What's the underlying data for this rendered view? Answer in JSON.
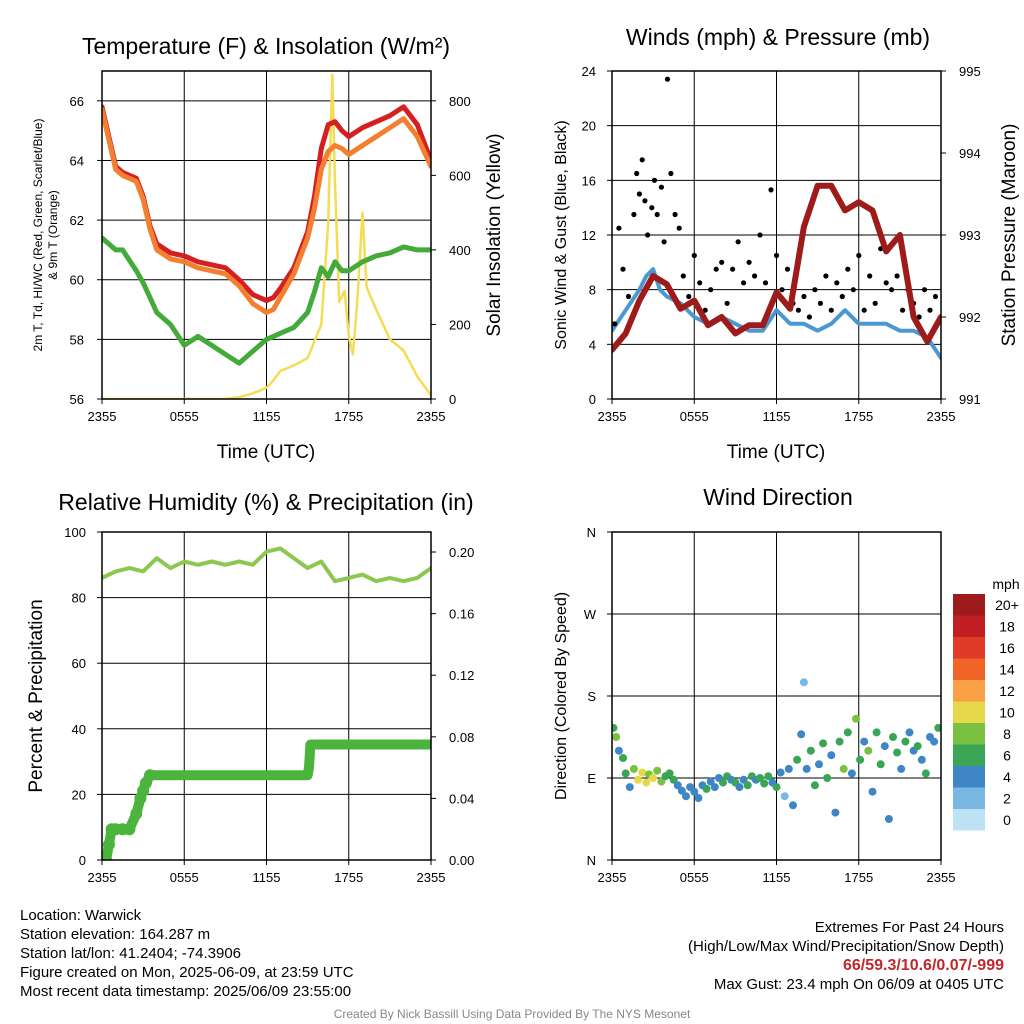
{
  "colors": {
    "temp": "#d42020",
    "hiwc": "#f28030",
    "dewpoint": "#44aa3a",
    "insolation": "#f5dc55",
    "wind": "#4a98d2",
    "gust": "#000000",
    "pressure": "#9e1b1b",
    "rh": "#8cc850",
    "precip": "#4ab43c"
  },
  "time_ticks": [
    "2355",
    "0555",
    "1155",
    "1755",
    "2355"
  ],
  "chart_data": [
    {
      "id": "temp",
      "type": "line",
      "title": "Temperature (F) & Insolation (W/m²)",
      "xlabel": "Time (UTC)",
      "ylabel": "2m T, Td, HI/WC (Red, Green, Scarlet/Blue) & 9m T (Orange)",
      "ylabel_lines": [
        "2m T, Td, HI/WC (Red, Green, Scarlet/Blue)",
        "& 9m T (Orange)"
      ],
      "ylabel2": "Solar Insolation (Yellow)",
      "x_hours": [
        0,
        1,
        1.5,
        2.5,
        3,
        3.5,
        4,
        5,
        6,
        7,
        8,
        9,
        10,
        11,
        12,
        12.5,
        13,
        14,
        15,
        15.5,
        16,
        16.5,
        17,
        17.5,
        18,
        19,
        20,
        21,
        22,
        23,
        24
      ],
      "series": [
        {
          "name": "2m T",
          "color": "#d42020",
          "values": [
            65.8,
            63.8,
            63.6,
            63.4,
            62.8,
            61.8,
            61.2,
            60.9,
            60.8,
            60.6,
            60.5,
            60.4,
            60.0,
            59.5,
            59.3,
            59.4,
            59.7,
            60.4,
            61.6,
            62.8,
            64.4,
            65.2,
            65.3,
            65.0,
            64.8,
            65.1,
            65.3,
            65.5,
            65.8,
            65.2,
            64.0
          ]
        },
        {
          "name": "9m T",
          "color": "#f28030",
          "values": [
            65.7,
            63.7,
            63.5,
            63.3,
            62.7,
            61.7,
            61.0,
            60.7,
            60.6,
            60.4,
            60.3,
            60.2,
            59.8,
            59.2,
            58.9,
            59.0,
            59.4,
            60.2,
            61.4,
            62.4,
            63.7,
            64.3,
            64.5,
            64.4,
            64.2,
            64.5,
            64.8,
            65.1,
            65.4,
            64.8,
            63.8
          ]
        },
        {
          "name": "Td",
          "color": "#44aa3a",
          "values": [
            61.4,
            61.0,
            61.0,
            60.3,
            59.9,
            59.4,
            58.9,
            58.5,
            57.8,
            58.1,
            57.8,
            57.5,
            57.2,
            57.6,
            58.0,
            58.1,
            58.2,
            58.4,
            58.9,
            59.6,
            60.4,
            60.1,
            60.6,
            60.3,
            60.3,
            60.6,
            60.8,
            60.9,
            61.1,
            61.0,
            61.0
          ]
        }
      ],
      "insolation": {
        "name": "Solar Insolation",
        "color": "#f5dc55",
        "x_hours": [
          0,
          9,
          10,
          11,
          12,
          12.5,
          13,
          14,
          15,
          16,
          16.5,
          16.8,
          17,
          17.3,
          17.7,
          18,
          18.3,
          18.6,
          19,
          19.3,
          20,
          21,
          22,
          23,
          24
        ],
        "values": [
          0,
          0,
          5,
          15,
          30,
          50,
          75,
          90,
          110,
          200,
          470,
          870,
          580,
          260,
          290,
          170,
          120,
          250,
          500,
          300,
          240,
          160,
          130,
          60,
          10
        ]
      },
      "ylim": [
        56,
        67
      ],
      "y_ticks": [
        56,
        58,
        60,
        62,
        64,
        66
      ],
      "y2lim": [
        0,
        880
      ],
      "y2_ticks": [
        0,
        200,
        400,
        600,
        800
      ],
      "xlim": [
        0,
        24
      ]
    },
    {
      "id": "wind",
      "type": "line+scatter",
      "title": "Winds (mph) & Pressure (mb)",
      "xlabel": "Time (UTC)",
      "ylabel": "Sonic Wind & Gust (Blue, Black)",
      "ylabel2": "Station Pressure (Maroon)",
      "wind_x_hours": [
        0,
        1,
        2,
        2.5,
        3,
        3.5,
        4,
        5,
        6,
        7,
        8,
        9,
        10,
        11,
        12,
        13,
        14,
        15,
        16,
        17,
        18,
        19,
        20,
        21,
        22,
        23,
        24
      ],
      "wind_values": [
        5.0,
        6.5,
        8.0,
        9.0,
        9.5,
        8.0,
        7.5,
        7.0,
        6.0,
        5.5,
        6.0,
        5.5,
        5.0,
        5.0,
        6.5,
        5.5,
        5.5,
        5.0,
        5.5,
        6.5,
        5.5,
        5.5,
        5.5,
        5.0,
        5.0,
        4.5,
        3.0
      ],
      "gust_points": [
        [
          0.2,
          5.5
        ],
        [
          0.5,
          12.5
        ],
        [
          0.8,
          9.5
        ],
        [
          1.2,
          7.5
        ],
        [
          1.6,
          13.5
        ],
        [
          1.8,
          16.5
        ],
        [
          2.0,
          15.0
        ],
        [
          2.2,
          17.5
        ],
        [
          2.4,
          14.5
        ],
        [
          2.6,
          12.0
        ],
        [
          2.9,
          14.0
        ],
        [
          3.1,
          16.0
        ],
        [
          3.3,
          13.5
        ],
        [
          3.6,
          15.5
        ],
        [
          3.8,
          11.5
        ],
        [
          4.05,
          23.4
        ],
        [
          4.3,
          16.5
        ],
        [
          4.6,
          13.5
        ],
        [
          4.9,
          12.5
        ],
        [
          5.2,
          9.0
        ],
        [
          5.6,
          7.5
        ],
        [
          6.0,
          10.5
        ],
        [
          6.4,
          8.5
        ],
        [
          6.8,
          6.5
        ],
        [
          7.2,
          8.0
        ],
        [
          7.6,
          9.5
        ],
        [
          8.0,
          10.0
        ],
        [
          8.4,
          7.0
        ],
        [
          8.8,
          9.5
        ],
        [
          9.2,
          11.5
        ],
        [
          9.6,
          8.5
        ],
        [
          10.0,
          10.0
        ],
        [
          10.4,
          9.0
        ],
        [
          10.8,
          12.0
        ],
        [
          11.2,
          8.5
        ],
        [
          11.6,
          15.3
        ],
        [
          12.0,
          10.5
        ],
        [
          12.4,
          8.0
        ],
        [
          12.8,
          9.5
        ],
        [
          13.2,
          7.0
        ],
        [
          13.6,
          6.5
        ],
        [
          14.0,
          7.5
        ],
        [
          14.4,
          6.0
        ],
        [
          14.8,
          8.0
        ],
        [
          15.2,
          7.0
        ],
        [
          15.6,
          9.0
        ],
        [
          16.0,
          6.5
        ],
        [
          16.4,
          8.5
        ],
        [
          16.8,
          7.5
        ],
        [
          17.2,
          9.5
        ],
        [
          17.6,
          8.0
        ],
        [
          18.0,
          10.5
        ],
        [
          18.4,
          6.5
        ],
        [
          18.8,
          9.0
        ],
        [
          19.2,
          7.0
        ],
        [
          19.6,
          11.0
        ],
        [
          20.0,
          8.5
        ],
        [
          20.4,
          8.0
        ],
        [
          20.8,
          9.0
        ],
        [
          21.2,
          6.5
        ],
        [
          21.6,
          8.0
        ],
        [
          22.0,
          7.0
        ],
        [
          22.4,
          6.0
        ],
        [
          22.8,
          8.0
        ],
        [
          23.2,
          6.5
        ],
        [
          23.6,
          7.5
        ],
        [
          24.0,
          6.0
        ]
      ],
      "pressure_x_hours": [
        0,
        1,
        2,
        3,
        4,
        5,
        6,
        7,
        8,
        9,
        10,
        11,
        12,
        13,
        14,
        15,
        16,
        17,
        18,
        19,
        20,
        21,
        22,
        23,
        24
      ],
      "pressure_values": [
        991.6,
        991.8,
        992.2,
        992.5,
        992.4,
        992.1,
        992.2,
        991.9,
        992.0,
        991.8,
        991.9,
        991.9,
        992.3,
        992.1,
        993.1,
        993.6,
        993.6,
        993.3,
        993.4,
        993.3,
        992.8,
        993.0,
        992.0,
        991.7,
        992.0
      ],
      "ylim": [
        0,
        24
      ],
      "y_ticks": [
        0,
        4,
        8,
        12,
        16,
        20,
        24
      ],
      "y2lim": [
        991,
        995
      ],
      "y2_ticks": [
        991,
        992,
        993,
        994,
        995
      ],
      "xlim": [
        0,
        24
      ]
    },
    {
      "id": "rh",
      "type": "line",
      "title": "Relative Humidity (%) & Precipitation (in)",
      "ylabel": "Percent & Precipitation",
      "rh_x_hours": [
        0,
        1,
        2,
        3,
        4,
        5,
        6,
        7,
        8,
        9,
        10,
        11,
        12,
        13,
        14,
        15,
        16,
        17,
        18,
        19,
        20,
        21,
        22,
        23,
        24
      ],
      "rh_values": [
        86,
        88,
        89,
        88,
        92,
        89,
        91,
        90,
        91,
        90,
        91,
        90,
        94,
        95,
        92,
        89,
        91,
        85,
        86,
        87,
        85,
        86,
        85,
        86,
        89
      ],
      "precip_x_hours": [
        0,
        0.3,
        0.5,
        0.7,
        1.0,
        1.5,
        2.0,
        2.5,
        2.8,
        3.0,
        3.2,
        3.5,
        15.0,
        15.1,
        15.2,
        24
      ],
      "precip_values": [
        0.0,
        0.0,
        0.01,
        0.02,
        0.02,
        0.02,
        0.02,
        0.03,
        0.04,
        0.045,
        0.05,
        0.055,
        0.055,
        0.06,
        0.075,
        0.075
      ],
      "ylim": [
        0,
        100
      ],
      "y_ticks": [
        0,
        20,
        40,
        60,
        80,
        100
      ],
      "y2lim": [
        0,
        0.213
      ],
      "y2_ticks": [
        "0.00",
        "0.04",
        "0.08",
        "0.12",
        "0.16",
        "0.20"
      ],
      "xlim": [
        0,
        24
      ]
    },
    {
      "id": "dir",
      "type": "scatter",
      "title": "Wind Direction",
      "ylabel": "Direction (Colored By Speed)",
      "y_ticks": [
        "N",
        "E",
        "S",
        "W",
        "N"
      ],
      "ylim": [
        0,
        360
      ],
      "xlim": [
        0,
        24
      ],
      "points": [
        [
          0.1,
          145,
          6
        ],
        [
          0.3,
          135,
          7
        ],
        [
          0.5,
          120,
          4
        ],
        [
          0.8,
          112,
          5
        ],
        [
          1.0,
          95,
          6
        ],
        [
          1.3,
          80,
          4
        ],
        [
          1.6,
          100,
          8
        ],
        [
          1.9,
          88,
          9
        ],
        [
          2.2,
          96,
          9
        ],
        [
          2.5,
          85,
          10
        ],
        [
          2.7,
          94,
          8
        ],
        [
          3.0,
          90,
          9
        ],
        [
          3.3,
          98,
          7
        ],
        [
          3.6,
          86,
          8
        ],
        [
          3.9,
          92,
          6
        ],
        [
          4.2,
          95,
          5
        ],
        [
          4.5,
          88,
          6
        ],
        [
          4.8,
          82,
          4
        ],
        [
          5.1,
          76,
          3
        ],
        [
          5.4,
          70,
          4
        ],
        [
          5.7,
          80,
          3
        ],
        [
          6.0,
          75,
          4
        ],
        [
          6.3,
          68,
          3
        ],
        [
          6.6,
          82,
          4
        ],
        [
          6.9,
          78,
          5
        ],
        [
          7.2,
          86,
          4
        ],
        [
          7.5,
          80,
          3
        ],
        [
          7.8,
          90,
          4
        ],
        [
          8.1,
          85,
          5
        ],
        [
          8.4,
          92,
          6
        ],
        [
          8.7,
          88,
          4
        ],
        [
          9.0,
          85,
          5
        ],
        [
          9.3,
          80,
          3
        ],
        [
          9.6,
          88,
          4
        ],
        [
          9.9,
          82,
          5
        ],
        [
          10.2,
          92,
          6
        ],
        [
          10.5,
          88,
          4
        ],
        [
          10.8,
          90,
          5
        ],
        [
          11.1,
          84,
          6
        ],
        [
          11.4,
          92,
          5
        ],
        [
          11.7,
          85,
          4
        ],
        [
          12.0,
          80,
          5
        ],
        [
          12.3,
          96,
          3
        ],
        [
          12.6,
          70,
          2
        ],
        [
          12.9,
          100,
          4
        ],
        [
          13.2,
          60,
          3
        ],
        [
          13.5,
          110,
          5
        ],
        [
          13.8,
          138,
          3
        ],
        [
          14.0,
          195,
          2
        ],
        [
          14.2,
          100,
          4
        ],
        [
          14.5,
          120,
          5
        ],
        [
          14.8,
          82,
          6
        ],
        [
          15.1,
          105,
          4
        ],
        [
          15.4,
          128,
          5
        ],
        [
          15.7,
          90,
          6
        ],
        [
          16.0,
          115,
          3
        ],
        [
          16.3,
          52,
          4
        ],
        [
          16.6,
          130,
          5
        ],
        [
          16.9,
          100,
          7
        ],
        [
          17.2,
          140,
          6
        ],
        [
          17.5,
          95,
          4
        ],
        [
          17.8,
          155,
          8
        ],
        [
          18.1,
          110,
          5
        ],
        [
          18.4,
          130,
          3
        ],
        [
          18.7,
          120,
          7
        ],
        [
          19.0,
          75,
          4
        ],
        [
          19.3,
          140,
          5
        ],
        [
          19.6,
          105,
          6
        ],
        [
          19.9,
          125,
          4
        ],
        [
          20.2,
          45,
          4
        ],
        [
          20.5,
          135,
          5
        ],
        [
          20.8,
          118,
          6
        ],
        [
          21.1,
          100,
          4
        ],
        [
          21.4,
          130,
          5
        ],
        [
          21.7,
          140,
          4
        ],
        [
          22.0,
          120,
          3
        ],
        [
          22.3,
          125,
          5
        ],
        [
          22.6,
          110,
          4
        ],
        [
          22.9,
          95,
          5
        ],
        [
          23.2,
          135,
          4
        ],
        [
          23.5,
          130,
          3
        ],
        [
          23.8,
          145,
          5
        ]
      ],
      "legend": {
        "unit": "mph",
        "labels": [
          "20+",
          "18",
          "16",
          "14",
          "12",
          "10",
          "8",
          "6",
          "4",
          "2",
          "0"
        ],
        "colors": [
          "#9e1b1b",
          "#c21f24",
          "#e03a28",
          "#f06428",
          "#f9a046",
          "#e6d84a",
          "#7ac142",
          "#3aa655",
          "#3f86c6",
          "#7ab8e4",
          "#bde2f5"
        ]
      }
    }
  ],
  "info": {
    "location": "Location: Warwick",
    "elevation": "Station elevation: 164.287 m",
    "latlon": "Station lat/lon: 41.2404; -74.3906",
    "created": "Figure created on Mon, 2025-06-09, at 23:59 UTC",
    "recent": "Most recent data timestamp: 2025/06/09 23:55:00",
    "extremes_title": "Extremes For Past 24 Hours",
    "extremes_subtitle": "(High/Low/Max Wind/Precipitation/Snow Depth)",
    "extremes_values": "66/59.3/10.6/0.07/-999",
    "max_gust": "Max Gust: 23.4 mph On 06/09 at 0405 UTC",
    "credit": "Created By Nick Bassill Using Data Provided By The NYS Mesonet"
  }
}
